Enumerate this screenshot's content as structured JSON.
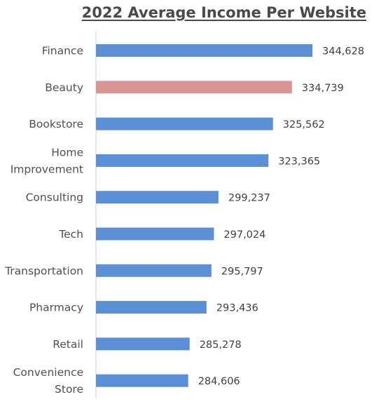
{
  "chart_data": {
    "type": "bar",
    "orientation": "horizontal",
    "title": "2022 Average Income Per Website",
    "xlabel": "",
    "ylabel": "",
    "grid": false,
    "legend": "none",
    "xlim": [
      240000,
      350000
    ],
    "categories": [
      [
        "Finance"
      ],
      [
        "Beauty"
      ],
      [
        "Bookstore"
      ],
      [
        "Home",
        "Improvement"
      ],
      [
        "Consulting"
      ],
      [
        "Tech"
      ],
      [
        "Transportation"
      ],
      [
        "Pharmacy"
      ],
      [
        "Retail"
      ],
      [
        "Convenience",
        "Store"
      ]
    ],
    "values": [
      344628,
      334739,
      325562,
      323365,
      299237,
      297024,
      295797,
      293436,
      285278,
      284606
    ],
    "value_labels": [
      "344,628",
      "334,739",
      "325,562",
      "323,365",
      "299,237",
      "297,024",
      "295,797",
      "293,436",
      "285,278",
      "284,606"
    ],
    "colors": {
      "default": "#5b8fd6",
      "highlight": "#d99494",
      "highlight_category": "Beauty"
    }
  }
}
